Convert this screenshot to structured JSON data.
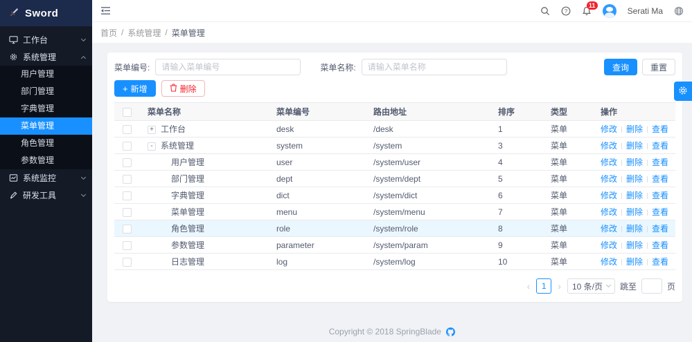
{
  "colors": {
    "accent": "#1890ff",
    "danger": "#f5222d",
    "badge": "#f5222d",
    "sidebar_bg": "#141a26",
    "sidebar_logo_bg": "#1c2a4c"
  },
  "sidebar": {
    "logo_title": "Sword",
    "items_top": [
      {
        "label": "工作台",
        "icon": "monitor-icon",
        "state": "collapsed"
      },
      {
        "label": "系统管理",
        "icon": "gear-icon",
        "state": "expanded"
      }
    ],
    "submenu": {
      "items": [
        {
          "label": "用户管理",
          "active": false
        },
        {
          "label": "部门管理",
          "active": false
        },
        {
          "label": "字典管理",
          "active": false
        },
        {
          "label": "菜单管理",
          "active": true
        },
        {
          "label": "角色管理",
          "active": false
        },
        {
          "label": "参数管理",
          "active": false
        }
      ]
    },
    "items_bottom": [
      {
        "label": "系统监控",
        "icon": "monitor-chart-icon",
        "state": "collapsed"
      },
      {
        "label": "研发工具",
        "icon": "pen-icon",
        "state": "collapsed"
      }
    ]
  },
  "topbar": {
    "notification_count": "11",
    "user_name": "Serati Ma"
  },
  "breadcrumb": {
    "separator": "/",
    "items": [
      "首页",
      "系统管理",
      "菜单管理"
    ]
  },
  "search_form": {
    "code_label": "菜单编号:",
    "code_placeholder": "请输入菜单编号",
    "name_label": "菜单名称:",
    "name_placeholder": "请输入菜单名称",
    "search_label": "查询",
    "reset_label": "重置"
  },
  "toolbar": {
    "add_label": "新增",
    "delete_label": "删除"
  },
  "table": {
    "headers": [
      "菜单名称",
      "菜单编号",
      "路由地址",
      "排序",
      "类型",
      "操作"
    ],
    "actions": [
      "修改",
      "删除",
      "查看"
    ],
    "rows": [
      {
        "name": "工作台",
        "expand": "+",
        "level": 0,
        "code": "desk",
        "path": "/desk",
        "sort": "1",
        "type": "菜单",
        "highlight": false
      },
      {
        "name": "系统管理",
        "expand": "-",
        "level": 0,
        "code": "system",
        "path": "/system",
        "sort": "3",
        "type": "菜单",
        "highlight": false
      },
      {
        "name": "用户管理",
        "expand": "",
        "level": 1,
        "code": "user",
        "path": "/system/user",
        "sort": "4",
        "type": "菜单",
        "highlight": false
      },
      {
        "name": "部门管理",
        "expand": "",
        "level": 1,
        "code": "dept",
        "path": "/system/dept",
        "sort": "5",
        "type": "菜单",
        "highlight": false
      },
      {
        "name": "字典管理",
        "expand": "",
        "level": 1,
        "code": "dict",
        "path": "/system/dict",
        "sort": "6",
        "type": "菜单",
        "highlight": false
      },
      {
        "name": "菜单管理",
        "expand": "",
        "level": 1,
        "code": "menu",
        "path": "/system/menu",
        "sort": "7",
        "type": "菜单",
        "highlight": false
      },
      {
        "name": "角色管理",
        "expand": "",
        "level": 1,
        "code": "role",
        "path": "/system/role",
        "sort": "8",
        "type": "菜单",
        "highlight": true
      },
      {
        "name": "参数管理",
        "expand": "",
        "level": 1,
        "code": "parameter",
        "path": "/system/param",
        "sort": "9",
        "type": "菜单",
        "highlight": false
      },
      {
        "name": "日志管理",
        "expand": "",
        "level": 1,
        "code": "log",
        "path": "/system/log",
        "sort": "10",
        "type": "菜单",
        "highlight": false
      }
    ]
  },
  "pagination": {
    "prev": "‹",
    "page": "1",
    "next": "›",
    "page_size": "10 条/页",
    "jump_label": "跳至",
    "jump_suffix": "页"
  },
  "footer": {
    "copyright": "Copyright © 2018 SpringBlade"
  }
}
